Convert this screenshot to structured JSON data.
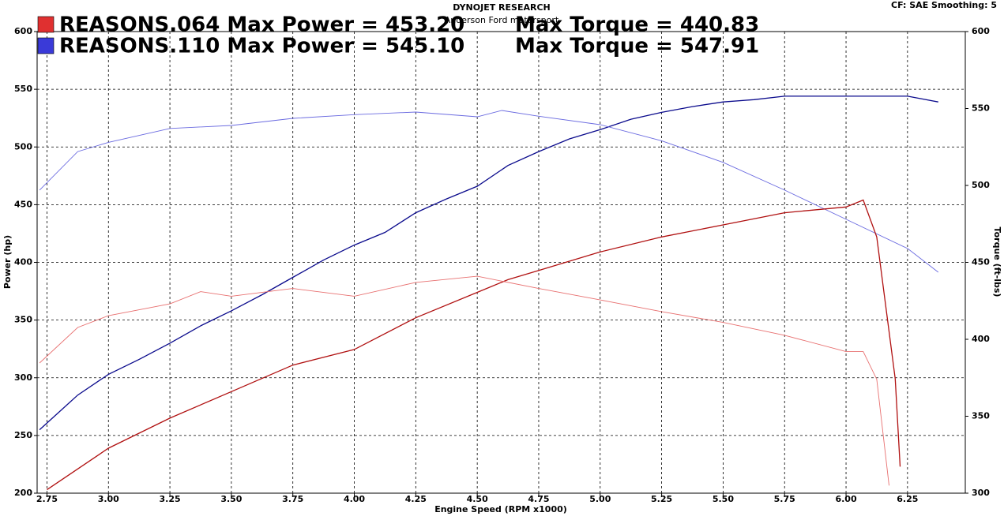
{
  "chart_data": {
    "type": "line",
    "title": "DYNOJET RESEARCH",
    "subtitle": "Anderson Ford motorsport",
    "corner_note": "CF: SAE  Smoothing: 5",
    "x_label": "Engine Speed (RPM x1000)",
    "y_label": "Power (hp)",
    "y2_label": "Torque (ft-lbs)",
    "legend": [
      {
        "label": "REASONS.064 Max Power = 453.20",
        "torque_label": "Max Torque = 440.83",
        "color": "#e03030"
      },
      {
        "label": "REASONS.110 Max Power = 545.10",
        "torque_label": "Max Torque = 547.91",
        "color": "#3a3ad8"
      }
    ],
    "xlim": [
      2.71,
      6.485
    ],
    "xticks": [
      2.75,
      {
        "value": 3,
        "label": "3.00"
      },
      3.25,
      {
        "value": 3.5,
        "label": "3.50"
      },
      3.75,
      {
        "value": 4,
        "label": "4.00"
      },
      4.25,
      {
        "value": 4.5,
        "label": "4.50"
      },
      4.75,
      {
        "value": 5,
        "label": "5.00"
      },
      5.25,
      {
        "value": 5.5,
        "label": "5.50"
      },
      5.75,
      {
        "value": 6,
        "label": "6.00"
      },
      6.25
    ],
    "ylim": [
      200,
      600
    ],
    "yticks": [
      200,
      250,
      300,
      350,
      400,
      450,
      500,
      550,
      600
    ],
    "y2lim": [
      300,
      600
    ],
    "y2ticks": [
      300,
      350,
      400,
      450,
      500,
      550,
      600
    ],
    "grid": true,
    "series": [
      {
        "color": "#0a0a8c",
        "width": 1.3,
        "x": [
          2.72,
          2.875,
          3.0,
          3.125,
          3.25,
          3.375,
          3.5,
          3.625,
          3.75,
          3.875,
          4.0,
          4.125,
          4.25,
          4.375,
          4.5,
          4.625,
          4.75,
          4.875,
          5.0,
          5.125,
          5.25,
          5.375,
          5.5,
          5.625,
          5.75,
          5.875,
          6.0,
          6.125,
          6.25,
          6.375
        ],
        "values": [
          255,
          285,
          303,
          316,
          330,
          345,
          358,
          372,
          387,
          402,
          415,
          426,
          443,
          455,
          466,
          484,
          496,
          507,
          515,
          524,
          530,
          535,
          539,
          541,
          544,
          544,
          544,
          544,
          544,
          539
        ]
      },
      {
        "color": "#6a6ae0",
        "width": 0.9,
        "axis": "y2",
        "x": [
          2.72,
          2.875,
          3.0,
          3.25,
          3.5,
          3.75,
          4.0,
          4.25,
          4.5,
          4.6,
          4.75,
          5.0,
          5.25,
          5.5,
          5.75,
          6.0,
          6.25,
          6.375
        ],
        "values": [
          497,
          522,
          528,
          537,
          539,
          543.6,
          546,
          547.7,
          544.6,
          548.7,
          545,
          539.5,
          529,
          515,
          497,
          478,
          459,
          443.6
        ]
      },
      {
        "color": "#b01010",
        "width": 1.3,
        "x": [
          2.75,
          3.0,
          3.25,
          3.5,
          3.75,
          4.0,
          4.25,
          4.5,
          4.625,
          4.75,
          5.0,
          5.25,
          5.5,
          5.75,
          6.0,
          6.07,
          6.125,
          6.2,
          6.22
        ],
        "values": [
          203,
          239,
          265,
          288,
          311,
          324.5,
          352,
          374,
          385,
          393,
          409,
          422,
          432.5,
          443,
          448,
          454,
          422,
          299,
          223
        ]
      },
      {
        "color": "#e87070",
        "width": 0.9,
        "axis": "y2",
        "x": [
          2.72,
          2.875,
          3.0,
          3.25,
          3.375,
          3.5,
          3.75,
          4.0,
          4.25,
          4.5,
          4.75,
          5.0,
          5.25,
          5.5,
          5.75,
          6.0,
          6.07,
          6.125,
          6.175
        ],
        "values": [
          384.6,
          407.7,
          415.4,
          423,
          431,
          428,
          433,
          428,
          437,
          441,
          433,
          425.6,
          418,
          411,
          402.6,
          392,
          392,
          374,
          305
        ]
      }
    ]
  }
}
